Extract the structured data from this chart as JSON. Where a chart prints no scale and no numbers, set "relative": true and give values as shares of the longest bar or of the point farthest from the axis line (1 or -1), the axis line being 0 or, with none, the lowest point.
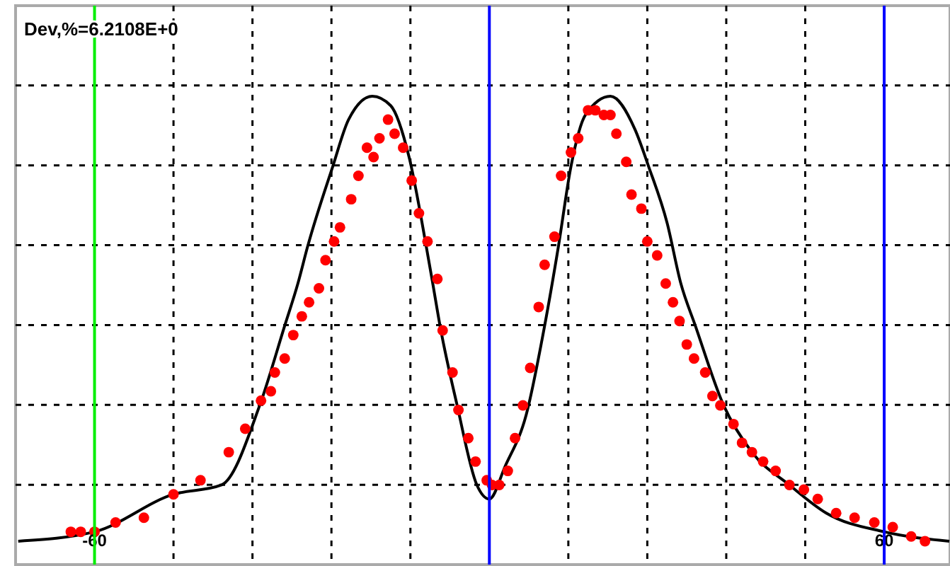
{
  "chart_data": {
    "type": "line",
    "title": "Dev,%=6.2108E+0",
    "relative": true,
    "xlim": [
      -72,
      70
    ],
    "xticks": [
      {
        "value": -60,
        "label": "-60"
      },
      {
        "value": -48,
        "label": null
      },
      {
        "value": -36,
        "label": null
      },
      {
        "value": -24,
        "label": null
      },
      {
        "value": -12,
        "label": null
      },
      {
        "value": 12,
        "label": null
      },
      {
        "value": 24,
        "label": null
      },
      {
        "value": 36,
        "label": null
      },
      {
        "value": 48,
        "label": null
      },
      {
        "value": 60,
        "label": "60"
      }
    ],
    "grid": true,
    "ref_lines": [
      {
        "axis": "x",
        "value": -60,
        "color": "#00ee00"
      },
      {
        "axis": "x",
        "value": 0,
        "color": "#0000ff"
      },
      {
        "axis": "x",
        "value": 60,
        "color": "#0000ff"
      }
    ],
    "series": [
      {
        "type": "line",
        "color": "#000000",
        "line_style": "solid",
        "marker": "none",
        "x": [
          -71.6,
          -60,
          -48,
          -40.7,
          -34.9,
          -31.1,
          -29.1,
          -27.6,
          -23.8,
          -21.4,
          -17.8,
          -15,
          -12.2,
          -9.6,
          -8.6,
          -7.5,
          -4.9,
          -1.9,
          0,
          2.4,
          5.6,
          8.4,
          10.5,
          12.4,
          14.6,
          18.4,
          22.1,
          24.2,
          27,
          29.1,
          31.3,
          35.6,
          39.9,
          45.6,
          51.2,
          60,
          69.9
        ],
        "values": [
          0.05,
          0.07,
          0.15,
          0.17,
          0.34,
          0.51,
          0.6,
          0.68,
          0.85,
          0.95,
          1,
          0.98,
          0.87,
          0.68,
          0.6,
          0.51,
          0.34,
          0.17,
          0.14,
          0.21,
          0.32,
          0.51,
          0.68,
          0.85,
          0.96,
          1,
          0.93,
          0.85,
          0.73,
          0.6,
          0.51,
          0.34,
          0.24,
          0.17,
          0.11,
          0.07,
          0.05
        ]
      },
      {
        "type": "scatter",
        "color": "#ff0000",
        "marker": "circle",
        "x": [
          -63.6,
          -62.1,
          -60,
          -56.8,
          -52.5,
          -48,
          -43.9,
          -39.6,
          -37.1,
          -34.7,
          -33.2,
          -32.6,
          -31.1,
          -29.8,
          -28.5,
          -27.4,
          -25.9,
          -24.9,
          -23.6,
          -22.7,
          -21,
          -19.9,
          -18.6,
          -17.6,
          -16.7,
          -15.4,
          -14.4,
          -13.1,
          -11.8,
          -10.7,
          -9.4,
          -7.9,
          -7.1,
          -5.6,
          -4.7,
          -3.2,
          -2.1,
          -0.4,
          0.4,
          1.5,
          2.8,
          3.9,
          5.1,
          6.2,
          7.5,
          8.4,
          9.9,
          10.9,
          12.4,
          13.5,
          15,
          16.1,
          17.4,
          18.4,
          19.3,
          20.8,
          21.6,
          23.1,
          24,
          25.5,
          26.8,
          27.9,
          28.9,
          30,
          31.1,
          32.8,
          33.9,
          35.1,
          37.1,
          38.4,
          39.9,
          41.6,
          43.5,
          45.6,
          47.8,
          49.9,
          52.7,
          55.5,
          58.5,
          61.3,
          64.1,
          66.2
        ],
        "values": [
          0.07,
          0.07,
          0.07,
          0.09,
          0.1,
          0.15,
          0.18,
          0.24,
          0.29,
          0.35,
          0.37,
          0.41,
          0.44,
          0.49,
          0.53,
          0.56,
          0.59,
          0.65,
          0.69,
          0.72,
          0.78,
          0.83,
          0.89,
          0.87,
          0.91,
          0.95,
          0.92,
          0.89,
          0.82,
          0.75,
          0.69,
          0.61,
          0.5,
          0.41,
          0.33,
          0.27,
          0.22,
          0.18,
          0.17,
          0.17,
          0.2,
          0.27,
          0.34,
          0.42,
          0.55,
          0.64,
          0.7,
          0.83,
          0.88,
          0.91,
          0.97,
          0.97,
          0.96,
          0.96,
          0.92,
          0.86,
          0.79,
          0.76,
          0.69,
          0.66,
          0.6,
          0.56,
          0.52,
          0.47,
          0.44,
          0.41,
          0.36,
          0.34,
          0.3,
          0.26,
          0.24,
          0.22,
          0.2,
          0.17,
          0.16,
          0.14,
          0.11,
          0.1,
          0.09,
          0.08,
          0.06,
          0.05
        ]
      }
    ]
  }
}
